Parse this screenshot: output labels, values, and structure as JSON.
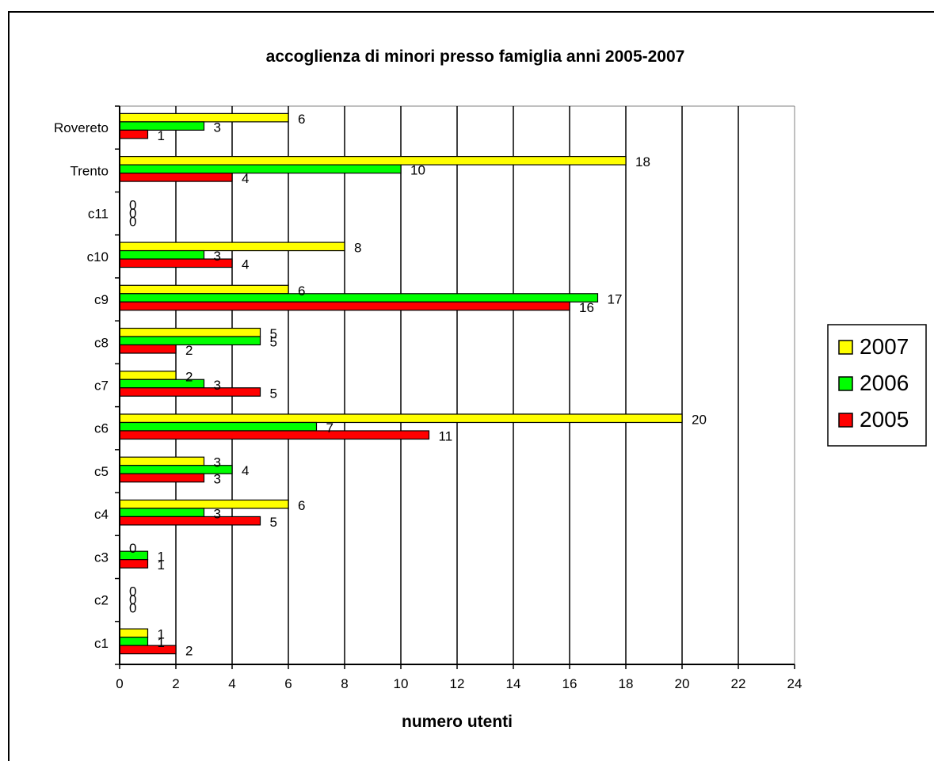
{
  "chart_data": {
    "type": "bar",
    "orientation": "horizontal",
    "title": "accoglienza di minori presso famiglia anni 2005-2007",
    "xlabel": "numero utenti",
    "ylabel": "",
    "xlim": [
      0,
      24
    ],
    "xticks": [
      "0",
      "2",
      "4",
      "6",
      "8",
      "10",
      "12",
      "14",
      "16",
      "18",
      "20",
      "22",
      "24"
    ],
    "grid": true,
    "legend_position": "right",
    "categories": [
      "c1",
      "c2",
      "c3",
      "c4",
      "c5",
      "c6",
      "c7",
      "c8",
      "c9",
      "c10",
      "c11",
      "Trento",
      "Rovereto"
    ],
    "series": [
      {
        "name": "2007",
        "color": "#ffff00",
        "values": [
          1,
          0,
          0,
          6,
          3,
          20,
          2,
          5,
          6,
          8,
          0,
          18,
          6
        ]
      },
      {
        "name": "2006",
        "color": "#00ff00",
        "values": [
          1,
          0,
          1,
          3,
          4,
          7,
          3,
          5,
          17,
          3,
          0,
          10,
          3
        ]
      },
      {
        "name": "2005",
        "color": "#ff0000",
        "values": [
          2,
          0,
          1,
          5,
          3,
          11,
          5,
          2,
          16,
          4,
          0,
          4,
          1
        ]
      }
    ]
  }
}
